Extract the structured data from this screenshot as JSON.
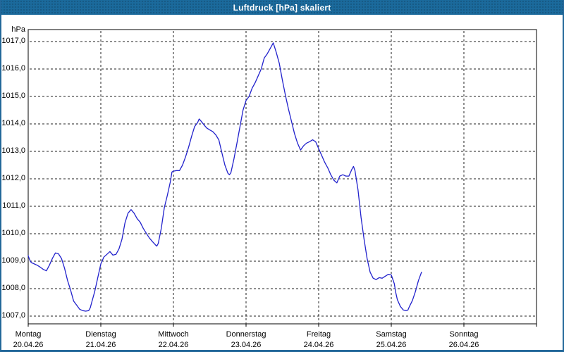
{
  "window": {
    "title": "Luftdruck [hPa] skaliert"
  },
  "colors": {
    "titlebar": "#1b6a9c",
    "window_border": "#23689a",
    "plot_border": "#000000",
    "gridline": "#222222",
    "background": "#ffffff",
    "series_line": "#2222cc"
  },
  "chart_data": {
    "type": "line",
    "title": "Luftdruck [hPa] skaliert",
    "legend": "none",
    "y_axis": {
      "unit_label": "hPa",
      "tick_labels": [
        "1017,0",
        "1016,0",
        "1015,0",
        "1014,0",
        "1013,0",
        "1012,0",
        "1011,0",
        "1010,0",
        "1009,0",
        "1008,0",
        "1007,0"
      ],
      "tick_values": [
        1017,
        1016,
        1015,
        1014,
        1013,
        1012,
        1011,
        1010,
        1009,
        1008,
        1007
      ],
      "ylim": [
        1006.7,
        1017.45
      ],
      "grid": "dashed"
    },
    "x_axis": {
      "days": [
        {
          "weekday": "Montag",
          "date": "20.04.26"
        },
        {
          "weekday": "Dienstag",
          "date": "21.04.26"
        },
        {
          "weekday": "Mittwoch",
          "date": "22.04.26"
        },
        {
          "weekday": "Donnerstag",
          "date": "23.04.26"
        },
        {
          "weekday": "Freitag",
          "date": "24.04.26"
        },
        {
          "weekday": "Samstag",
          "date": "25.04.26"
        },
        {
          "weekday": "Sonntag",
          "date": "26.04.26"
        }
      ],
      "hours_per_day": 24,
      "xlim_hours": [
        0,
        168
      ],
      "grid": "dashed vertical line at each day start"
    },
    "series": [
      {
        "name": "Luftdruck",
        "unit": "hPa",
        "color": "#2222cc",
        "points_hour_value": [
          [
            0,
            1009.2
          ],
          [
            0.5,
            1009.05
          ],
          [
            1,
            1008.95
          ],
          [
            2,
            1008.9
          ],
          [
            3,
            1008.85
          ],
          [
            4,
            1008.78
          ],
          [
            5,
            1008.7
          ],
          [
            6,
            1008.65
          ],
          [
            7,
            1008.85
          ],
          [
            8,
            1009.1
          ],
          [
            9,
            1009.3
          ],
          [
            10,
            1009.27
          ],
          [
            11,
            1009.1
          ],
          [
            12,
            1008.75
          ],
          [
            13,
            1008.3
          ],
          [
            14,
            1007.95
          ],
          [
            15,
            1007.55
          ],
          [
            16,
            1007.4
          ],
          [
            17,
            1007.25
          ],
          [
            18,
            1007.2
          ],
          [
            19,
            1007.18
          ],
          [
            20,
            1007.2
          ],
          [
            20.5,
            1007.3
          ],
          [
            21,
            1007.5
          ],
          [
            22,
            1007.9
          ],
          [
            23,
            1008.4
          ],
          [
            24,
            1008.9
          ],
          [
            25,
            1009.15
          ],
          [
            26,
            1009.25
          ],
          [
            27,
            1009.35
          ],
          [
            28,
            1009.22
          ],
          [
            29,
            1009.25
          ],
          [
            30,
            1009.45
          ],
          [
            31,
            1009.8
          ],
          [
            32,
            1010.4
          ],
          [
            33,
            1010.75
          ],
          [
            34,
            1010.88
          ],
          [
            35,
            1010.75
          ],
          [
            36,
            1010.55
          ],
          [
            37,
            1010.42
          ],
          [
            38,
            1010.2
          ],
          [
            39,
            1010.02
          ],
          [
            40,
            1009.85
          ],
          [
            41,
            1009.72
          ],
          [
            42,
            1009.6
          ],
          [
            42.5,
            1009.55
          ],
          [
            43,
            1009.65
          ],
          [
            44,
            1010.2
          ],
          [
            45,
            1010.95
          ],
          [
            46,
            1011.4
          ],
          [
            47,
            1011.9
          ],
          [
            47.5,
            1012.25
          ],
          [
            48,
            1012.28
          ],
          [
            49,
            1012.3
          ],
          [
            50,
            1012.3
          ],
          [
            51,
            1012.5
          ],
          [
            52,
            1012.8
          ],
          [
            53,
            1013.15
          ],
          [
            54,
            1013.55
          ],
          [
            55,
            1013.9
          ],
          [
            56,
            1014.05
          ],
          [
            56.5,
            1014.18
          ],
          [
            57,
            1014.12
          ],
          [
            58,
            1013.98
          ],
          [
            59,
            1013.85
          ],
          [
            60,
            1013.78
          ],
          [
            61,
            1013.72
          ],
          [
            62,
            1013.6
          ],
          [
            63,
            1013.42
          ],
          [
            64,
            1012.95
          ],
          [
            65,
            1012.5
          ],
          [
            66,
            1012.2
          ],
          [
            66.5,
            1012.15
          ],
          [
            67,
            1012.22
          ],
          [
            68,
            1012.72
          ],
          [
            69,
            1013.3
          ],
          [
            70,
            1013.9
          ],
          [
            71,
            1014.5
          ],
          [
            72,
            1014.85
          ],
          [
            73,
            1015.0
          ],
          [
            74,
            1015.3
          ],
          [
            75,
            1015.5
          ],
          [
            76,
            1015.75
          ],
          [
            77,
            1016.0
          ],
          [
            78,
            1016.4
          ],
          [
            79,
            1016.55
          ],
          [
            80,
            1016.75
          ],
          [
            81,
            1016.95
          ],
          [
            82,
            1016.6
          ],
          [
            83,
            1016.2
          ],
          [
            84,
            1015.6
          ],
          [
            85,
            1015.05
          ],
          [
            86,
            1014.55
          ],
          [
            87,
            1014.1
          ],
          [
            88,
            1013.65
          ],
          [
            89,
            1013.3
          ],
          [
            90,
            1013.05
          ],
          [
            91,
            1013.2
          ],
          [
            92,
            1013.3
          ],
          [
            93,
            1013.35
          ],
          [
            94,
            1013.42
          ],
          [
            95,
            1013.35
          ],
          [
            96,
            1013.1
          ],
          [
            97,
            1012.85
          ],
          [
            98,
            1012.6
          ],
          [
            99,
            1012.4
          ],
          [
            100,
            1012.15
          ],
          [
            101,
            1011.95
          ],
          [
            102,
            1011.85
          ],
          [
            103,
            1012.1
          ],
          [
            104,
            1012.15
          ],
          [
            105,
            1012.1
          ],
          [
            106,
            1012.1
          ],
          [
            107,
            1012.35
          ],
          [
            107.5,
            1012.45
          ],
          [
            108,
            1012.3
          ],
          [
            109,
            1011.6
          ],
          [
            110,
            1010.6
          ],
          [
            111,
            1009.8
          ],
          [
            112,
            1009.1
          ],
          [
            113,
            1008.6
          ],
          [
            114,
            1008.38
          ],
          [
            115,
            1008.33
          ],
          [
            116,
            1008.4
          ],
          [
            117,
            1008.38
          ],
          [
            118,
            1008.45
          ],
          [
            119,
            1008.52
          ],
          [
            120,
            1008.5
          ],
          [
            121,
            1008.18
          ],
          [
            121.5,
            1007.85
          ],
          [
            122,
            1007.6
          ],
          [
            123,
            1007.35
          ],
          [
            124,
            1007.22
          ],
          [
            125,
            1007.2
          ],
          [
            125.5,
            1007.22
          ],
          [
            126,
            1007.35
          ],
          [
            127,
            1007.57
          ],
          [
            128,
            1007.9
          ],
          [
            129,
            1008.3
          ],
          [
            130,
            1008.6
          ]
        ]
      }
    ]
  }
}
